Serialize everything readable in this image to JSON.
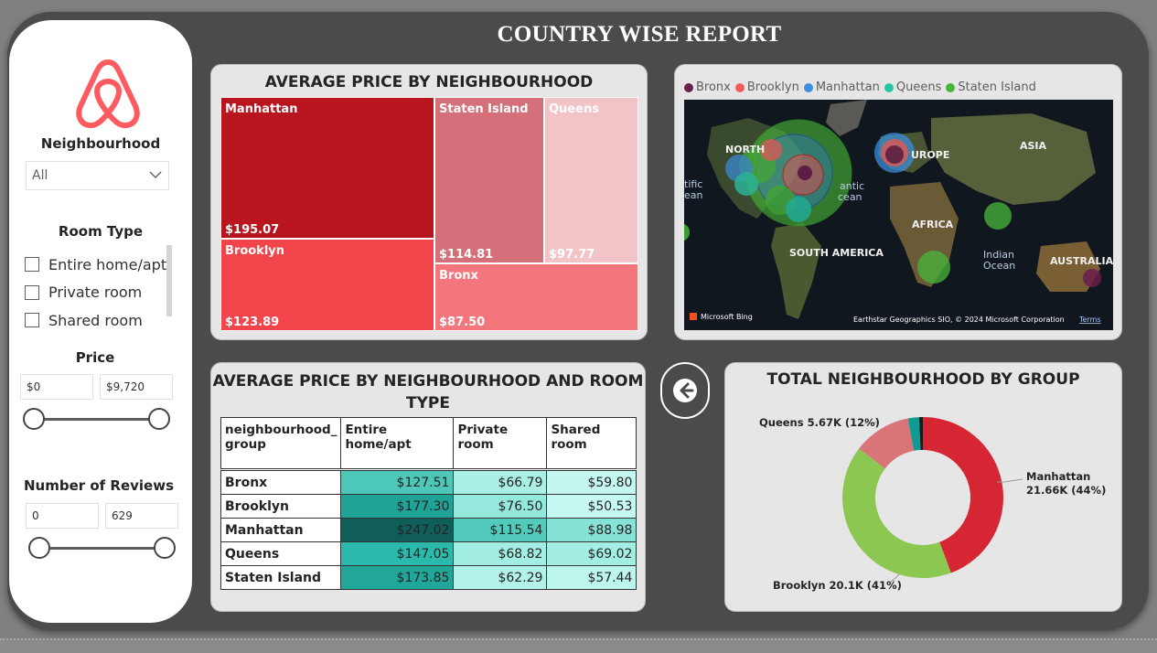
{
  "report": {
    "title": "COUNTRY WISE REPORT"
  },
  "colors": {
    "bronx": "#6b1e4a",
    "brooklyn": "#f25c5c",
    "manhattan": "#3a8fe0",
    "queens": "#28c4a8",
    "staten_island": "#47b33a"
  },
  "sidebar": {
    "logo_icon": "airbnb-logo-icon",
    "neighbourhood": {
      "title": "Neighbourhood",
      "selected": "All"
    },
    "room_type": {
      "title": "Room Type",
      "options": [
        "Entire home/apt",
        "Private room",
        "Shared room"
      ]
    },
    "price": {
      "title": "Price",
      "min": "$0",
      "max": "$9,720"
    },
    "reviews": {
      "title": "Number of Reviews",
      "min": "0",
      "max": "629"
    }
  },
  "treemap": {
    "title": "AVERAGE PRICE BY NEIGHBOURHOOD",
    "items": [
      {
        "name": "Manhattan",
        "value": "$195.07",
        "color": "#b8151f"
      },
      {
        "name": "Brooklyn",
        "value": "$123.89",
        "color": "#f2444b"
      },
      {
        "name": "Staten Island",
        "value": "$114.81",
        "color": "#d4707a"
      },
      {
        "name": "Queens",
        "value": "$97.77",
        "color": "#f2c4c8"
      },
      {
        "name": "Bronx",
        "value": "$87.50",
        "color": "#f3767c"
      }
    ]
  },
  "map": {
    "legend": [
      "Bronx",
      "Brooklyn",
      "Manhattan",
      "Queens",
      "Staten Island"
    ],
    "labels": {
      "north": "NORTH",
      "atlantic": "antic",
      "ocean_left": "cean",
      "pacific": "tific",
      "pacific2": "ean",
      "europe": "UROPE",
      "asia": "ASIA",
      "africa": "AFRICA",
      "south_america": "SOUTH AMERICA",
      "indian": "Indian",
      "indian_ocean": "Ocean",
      "australia": "AUSTRALIA"
    },
    "attribution": {
      "brand": "Microsoft Bing",
      "copyright": "Earthstar Geographics SIO, © 2024 Microsoft Corporation",
      "terms": "Terms"
    }
  },
  "matrix": {
    "title_line1": "AVERAGE PRICE BY NEIGHBOURHOOD AND ROOM",
    "title_line2": "TYPE",
    "headers": [
      "neighbourhood_ group",
      "Entire home/apt",
      "Private room",
      "Shared room"
    ],
    "rows": [
      {
        "name": "Bronx",
        "values": [
          "$127.51",
          "$66.79",
          "$59.80"
        ],
        "colors": [
          "#4dc8b8",
          "#a9efe4",
          "#c3f7ef"
        ]
      },
      {
        "name": "Brooklyn",
        "values": [
          "$177.30",
          "$76.50",
          "$50.53"
        ],
        "colors": [
          "#1fa397",
          "#94e8dc",
          "#c6f9f2"
        ]
      },
      {
        "name": "Manhattan",
        "values": [
          "$247.02",
          "$115.54",
          "$88.98"
        ],
        "colors": [
          "#0f5e59",
          "#52cbbc",
          "#86e2d6"
        ]
      },
      {
        "name": "Queens",
        "values": [
          "$147.05",
          "$68.82",
          "$69.02"
        ],
        "colors": [
          "#2bb9ab",
          "#a3eee3",
          "#a3eee3"
        ]
      },
      {
        "name": "Staten Island",
        "values": [
          "$173.85",
          "$62.29",
          "$57.44"
        ],
        "colors": [
          "#21a79a",
          "#b2f2e8",
          "#bcf5ec"
        ]
      }
    ]
  },
  "back_button": {
    "icon": "arrow-left-icon"
  },
  "donut": {
    "title": "TOTAL NEIGHBOURHOOD BY GROUP",
    "chart_data": {
      "type": "pie",
      "categories": [
        "Manhattan",
        "Brooklyn",
        "Queens",
        "Bronx",
        "Staten Island"
      ],
      "values": [
        21.66,
        20.1,
        5.67,
        1.09,
        0.37
      ],
      "colors": [
        "#d62633",
        "#8cc752",
        "#d97579",
        "#0f9a93",
        "#1a1a1a"
      ]
    },
    "labels": {
      "manhattan_line1": "Manhattan",
      "manhattan_line2": "21.66K (44%)",
      "brooklyn": "Brooklyn 20.1K (41%)",
      "queens": "Queens 5.67K (12%)"
    }
  }
}
